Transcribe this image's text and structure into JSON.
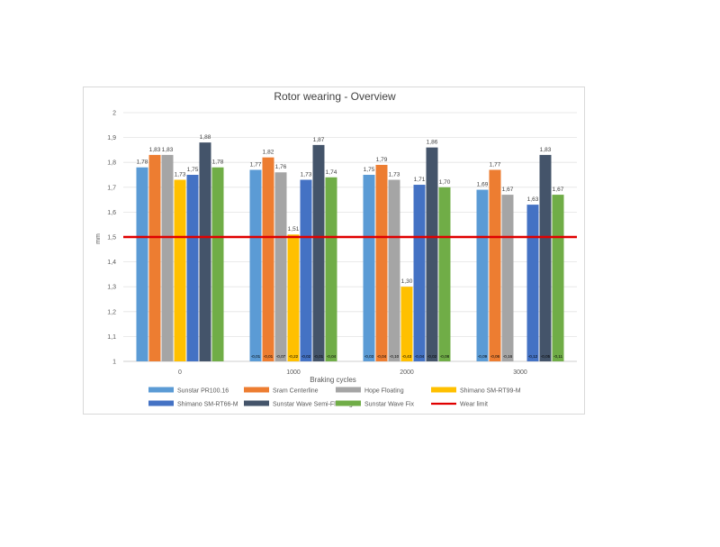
{
  "chart_data": {
    "type": "bar",
    "title": "Rotor wearing - Overview",
    "xlabel": "Braking cycles",
    "ylabel": "mm",
    "categories": [
      "0",
      "1000",
      "2000",
      "3000"
    ],
    "ylim": [
      1,
      2
    ],
    "yticks": [
      "1",
      "1,1",
      "1,2",
      "1,3",
      "1,4",
      "1,5",
      "1,6",
      "1,7",
      "1,8",
      "1,9",
      "2"
    ],
    "grid": "horizontal",
    "legend_position": "bottom",
    "series": [
      {
        "name": "Sunstar PR100.16",
        "color": "#5b9bd5",
        "values": [
          1.78,
          1.77,
          1.75,
          1.69
        ],
        "labels": [
          "1,78",
          "1,77",
          "1,75",
          "1,69"
        ],
        "deltas": [
          "",
          "-0,01",
          "-0,03",
          "-0,09"
        ]
      },
      {
        "name": "Sram Centerline",
        "color": "#ed7d31",
        "values": [
          1.83,
          1.82,
          1.79,
          1.77
        ],
        "labels": [
          "1,83",
          "1,82",
          "1,79",
          "1,77"
        ],
        "deltas": [
          "",
          "-0,01",
          "-0,04",
          "-0,06"
        ]
      },
      {
        "name": "Hope Floating",
        "color": "#a5a5a5",
        "values": [
          1.83,
          1.76,
          1.73,
          1.67
        ],
        "labels": [
          "1,83",
          "1,76",
          "1,73",
          "1,67"
        ],
        "deltas": [
          "",
          "-0,07",
          "-0,10",
          "-0,16"
        ]
      },
      {
        "name": "Shimano SM-RT99-M",
        "color": "#ffc000",
        "values": [
          1.73,
          1.51,
          1.3,
          null
        ],
        "labels": [
          "1,73",
          "1,51",
          "1,30",
          ""
        ],
        "deltas": [
          "",
          "-0,22",
          "-0,43",
          ""
        ]
      },
      {
        "name": "Shimano SM-RT66-M",
        "color": "#4472c4",
        "values": [
          1.75,
          1.73,
          1.71,
          1.63
        ],
        "labels": [
          "1,75",
          "1,73",
          "1,71",
          "1,63"
        ],
        "deltas": [
          "",
          "-0,02",
          "-0,04",
          "-0,12"
        ]
      },
      {
        "name": "Sunstar Wave Semi-Floating",
        "color": "#44546a",
        "values": [
          1.88,
          1.87,
          1.86,
          1.83
        ],
        "labels": [
          "1,88",
          "1,87",
          "1,86",
          "1,83"
        ],
        "deltas": [
          "",
          "-0,01",
          "-0,02",
          "-0,05"
        ]
      },
      {
        "name": "Sunstar Wave Fix",
        "color": "#70ad47",
        "values": [
          1.78,
          1.74,
          1.7,
          1.67
        ],
        "labels": [
          "1,78",
          "1,74",
          "1,70",
          "1,67"
        ],
        "deltas": [
          "",
          "-0,04",
          "-0,08",
          "-0,11"
        ]
      }
    ],
    "reference_line": {
      "name": "Wear limit",
      "value": 1.5,
      "color": "#e00000"
    }
  }
}
